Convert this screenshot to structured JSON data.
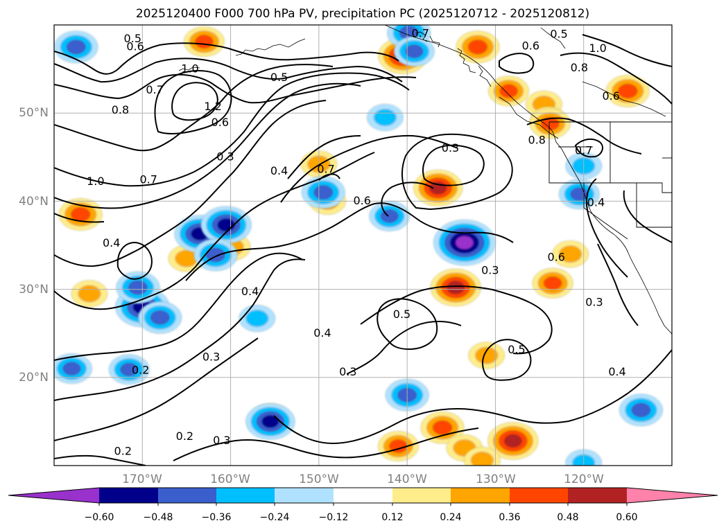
{
  "chart_data": {
    "type": "contour-map",
    "title": "2025120400 F000 700 hPa PV, precipitation PC (2025120712 - 2025120812)",
    "projection": "lat-lon map, North Pacific",
    "lat_ticks": [
      "50°N",
      "40°N",
      "30°N",
      "20°N"
    ],
    "lon_ticks": [
      "170°W",
      "160°W",
      "150°W",
      "140°W",
      "130°W",
      "120°W"
    ],
    "colorbar": {
      "ticks": [
        "−0.60",
        "−0.48",
        "−0.36",
        "−0.24",
        "−0.12",
        "0.12",
        "0.24",
        "0.36",
        "0.48",
        "0.60"
      ],
      "colors": [
        "#9932cc",
        "#00008b",
        "#3a5fcd",
        "#00bfff",
        "#b0e2ff",
        "#ffffff",
        "#ffec8b",
        "#ffa500",
        "#ff4500",
        "#b22222",
        "#ff82ab"
      ],
      "extend": "both"
    },
    "contour_labels": [
      "0.5",
      "0.6",
      "0.7",
      "0.5",
      "0.6",
      "1.0",
      "0.8",
      "0.6",
      "1.0",
      "0.7",
      "1.2",
      "0.8",
      "0.6",
      "0.5",
      "0.3",
      "0.4",
      "0.7",
      "0.3",
      "0.8",
      "0.7",
      "1.0",
      "0.7",
      "0.6",
      "0.4",
      "0.4",
      "0.6",
      "0.3",
      "0.4",
      "0.3",
      "0.5",
      "0.3",
      "0.5",
      "0.3",
      "0.4",
      "0.2",
      "0.3",
      "0.2",
      "0.2",
      "0.4"
    ],
    "contour_label_positions": [
      [
        -171.1,
        58.5
      ],
      [
        -170.8,
        57.6
      ],
      [
        -138.5,
        59.1
      ],
      [
        -122.8,
        59.0
      ],
      [
        -126.0,
        57.7
      ],
      [
        -118.4,
        57.4
      ],
      [
        -120.5,
        55.2
      ],
      [
        -116.9,
        52.0
      ],
      [
        -164.6,
        55.1
      ],
      [
        -168.6,
        52.7
      ],
      [
        -162.0,
        50.8
      ],
      [
        -172.5,
        50.4
      ],
      [
        -161.2,
        49.0
      ],
      [
        -154.5,
        54.1
      ],
      [
        -160.6,
        45.1
      ],
      [
        -154.5,
        43.5
      ],
      [
        -149.2,
        43.7
      ],
      [
        -135.1,
        46.1
      ],
      [
        -125.3,
        47.0
      ],
      [
        -120.0,
        45.8
      ],
      [
        -175.3,
        42.3
      ],
      [
        -169.3,
        42.5
      ],
      [
        -145.1,
        40.1
      ],
      [
        -118.6,
        39.9
      ],
      [
        -173.5,
        35.3
      ],
      [
        -123.1,
        33.7
      ],
      [
        -130.6,
        32.2
      ],
      [
        -157.8,
        29.8
      ],
      [
        -118.8,
        28.6
      ],
      [
        -140.6,
        27.2
      ],
      [
        -162.2,
        22.4
      ],
      [
        -127.6,
        23.2
      ],
      [
        -146.7,
        20.7
      ],
      [
        -116.2,
        20.7
      ],
      [
        -170.2,
        20.9
      ],
      [
        -161.0,
        12.9
      ],
      [
        -165.2,
        13.4
      ],
      [
        -172.2,
        11.7
      ],
      [
        -149.6,
        25.1
      ]
    ],
    "positive_patches": [
      {
        "lon": -163.0,
        "lat": 58.1,
        "value": 0.36
      },
      {
        "lon": -140.5,
        "lat": 56.5,
        "value": 0.48
      },
      {
        "lon": -132.0,
        "lat": 57.5,
        "value": 0.4
      },
      {
        "lon": -128.5,
        "lat": 52.5,
        "value": 0.36
      },
      {
        "lon": -124.5,
        "lat": 51.0,
        "value": 0.3
      },
      {
        "lon": -124.0,
        "lat": 49.2,
        "value": 0.3
      },
      {
        "lon": -123.8,
        "lat": 48.8,
        "value": 0.36
      },
      {
        "lon": -115.0,
        "lat": 52.5,
        "value": 0.4
      },
      {
        "lon": -150.0,
        "lat": 44.2,
        "value": 0.3
      },
      {
        "lon": -177.0,
        "lat": 38.5,
        "value": 0.4
      },
      {
        "lon": -165.0,
        "lat": 33.5,
        "value": 0.3
      },
      {
        "lon": -159.8,
        "lat": 34.8,
        "value": 0.3
      },
      {
        "lon": -149.0,
        "lat": 40.0,
        "value": 0.3
      },
      {
        "lon": -136.5,
        "lat": 41.5,
        "value": 0.48
      },
      {
        "lon": -134.5,
        "lat": 30.2,
        "value": 0.5
      },
      {
        "lon": -123.5,
        "lat": 30.7,
        "value": 0.36
      },
      {
        "lon": -121.5,
        "lat": 34.0,
        "value": 0.3
      },
      {
        "lon": -176.0,
        "lat": 29.5,
        "value": 0.3
      },
      {
        "lon": -155.5,
        "lat": 15.3,
        "value": 0.36
      },
      {
        "lon": -131.0,
        "lat": 22.5,
        "value": 0.3
      },
      {
        "lon": -136.0,
        "lat": 14.3,
        "value": 0.4
      },
      {
        "lon": -128.0,
        "lat": 12.8,
        "value": 0.5
      },
      {
        "lon": -141.0,
        "lat": 12.2,
        "value": 0.36
      },
      {
        "lon": -133.5,
        "lat": 12.0,
        "value": 0.3
      },
      {
        "lon": -131.5,
        "lat": 10.6,
        "value": 0.3
      }
    ],
    "negative_patches": [
      {
        "lon": -177.5,
        "lat": 57.5,
        "value": -0.4
      },
      {
        "lon": -139.8,
        "lat": 59.1,
        "value": -0.4
      },
      {
        "lon": -139.2,
        "lat": 57.0,
        "value": -0.36
      },
      {
        "lon": -142.5,
        "lat": 49.5,
        "value": -0.3
      },
      {
        "lon": -120.5,
        "lat": 40.8,
        "value": -0.36
      },
      {
        "lon": -120.0,
        "lat": 44.0,
        "value": -0.3
      },
      {
        "lon": -163.5,
        "lat": 36.3,
        "value": -0.5
      },
      {
        "lon": -160.5,
        "lat": 37.3,
        "value": -0.5
      },
      {
        "lon": -161.7,
        "lat": 33.9,
        "value": -0.4
      },
      {
        "lon": -149.5,
        "lat": 41.0,
        "value": -0.4
      },
      {
        "lon": -142.0,
        "lat": 38.3,
        "value": -0.36
      },
      {
        "lon": -133.5,
        "lat": 35.3,
        "value": -0.66
      },
      {
        "lon": -170.0,
        "lat": 28.0,
        "value": -0.55
      },
      {
        "lon": -168.0,
        "lat": 26.8,
        "value": -0.4
      },
      {
        "lon": -170.5,
        "lat": 30.2,
        "value": -0.4
      },
      {
        "lon": -157.0,
        "lat": 26.7,
        "value": -0.3
      },
      {
        "lon": -171.5,
        "lat": 20.9,
        "value": -0.36
      },
      {
        "lon": -178.0,
        "lat": 21.0,
        "value": -0.36
      },
      {
        "lon": -140.0,
        "lat": 18.0,
        "value": -0.4
      },
      {
        "lon": -155.5,
        "lat": 15.0,
        "value": -0.48
      },
      {
        "lon": -113.5,
        "lat": 16.3,
        "value": -0.4
      },
      {
        "lon": -120.0,
        "lat": 10.3,
        "value": -0.3
      }
    ]
  }
}
